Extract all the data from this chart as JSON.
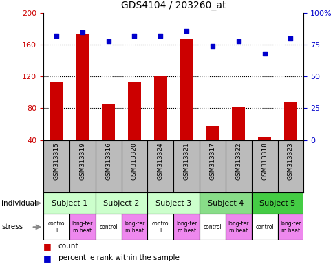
{
  "title": "GDS4104 / 203260_at",
  "samples": [
    "GSM313315",
    "GSM313319",
    "GSM313316",
    "GSM313320",
    "GSM313324",
    "GSM313321",
    "GSM313317",
    "GSM313322",
    "GSM313318",
    "GSM313323"
  ],
  "counts": [
    113,
    174,
    85,
    113,
    120,
    167,
    57,
    82,
    43,
    87
  ],
  "percentiles": [
    82,
    85,
    78,
    82,
    82,
    86,
    74,
    78,
    68,
    80
  ],
  "ylim_left": [
    40,
    200
  ],
  "ylim_right": [
    0,
    100
  ],
  "yticks_left": [
    40,
    80,
    120,
    160,
    200
  ],
  "yticks_right": [
    0,
    25,
    50,
    75,
    100
  ],
  "subjects": [
    {
      "label": "Subject 1",
      "cols": [
        0,
        1
      ],
      "color": "#ccffcc"
    },
    {
      "label": "Subject 2",
      "cols": [
        2,
        3
      ],
      "color": "#ccffcc"
    },
    {
      "label": "Subject 3",
      "cols": [
        4,
        5
      ],
      "color": "#ccffcc"
    },
    {
      "label": "Subject 4",
      "cols": [
        6,
        7
      ],
      "color": "#88dd88"
    },
    {
      "label": "Subject 5",
      "cols": [
        8,
        9
      ],
      "color": "#44cc44"
    }
  ],
  "stress": [
    {
      "label": "contro\nl",
      "color": "#ee88ee"
    },
    {
      "label": "long-ter\nm heat",
      "color": "#ee88ee"
    },
    {
      "label": "control",
      "color": "#ee88ee"
    },
    {
      "label": "long-ter\nm heat",
      "color": "#ee88ee"
    },
    {
      "label": "contro\nl",
      "color": "#ee88ee"
    },
    {
      "label": "long-ter\nm heat",
      "color": "#ee88ee"
    },
    {
      "label": "control",
      "color": "#ee88ee"
    },
    {
      "label": "long-ter\nm heat",
      "color": "#ee88ee"
    },
    {
      "label": "control",
      "color": "#ee88ee"
    },
    {
      "label": "long-ter\nm heat",
      "color": "#ee88ee"
    }
  ],
  "stress_labels": [
    "contro\nl",
    "long-ter\nm heat",
    "control",
    "long-ter\nm heat",
    "contro\nl",
    "long-ter\nm heat",
    "control",
    "long-ter\nm heat",
    "control",
    "long-ter\nm heat"
  ],
  "stress_colors": [
    "#ffffff",
    "#ee88ee",
    "#ffffff",
    "#ee88ee",
    "#ffffff",
    "#ee88ee",
    "#ffffff",
    "#ee88ee",
    "#ffffff",
    "#ee88ee"
  ],
  "bar_color": "#cc0000",
  "dot_color": "#0000cc",
  "grid_color": "#000000",
  "label_color_left": "#cc0000",
  "label_color_right": "#0000cc",
  "sample_bg_color": "#bbbbbb"
}
